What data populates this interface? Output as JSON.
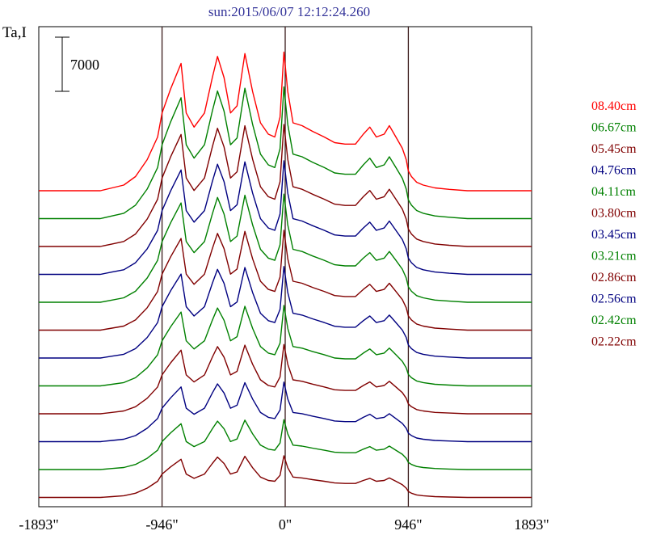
{
  "chart_data": {
    "type": "line",
    "title": "sun:2015/06/07 12:12:24.260",
    "ylabel": "Ta,I",
    "scale_bar_label": "7000",
    "x_ticks": [
      "-1893\"",
      "-946\"",
      "0\"",
      "946\"",
      "1893\""
    ],
    "x_tick_values": [
      -1893,
      -946,
      0,
      946,
      1893
    ],
    "xlim": [
      -1893,
      1893
    ],
    "vertical_markers": [
      -946,
      0,
      946
    ],
    "grid": false,
    "legend_position": "right",
    "series": [
      {
        "name": "08.40cm",
        "color": "#ff0000",
        "peak": 1.0
      },
      {
        "name": "06.67cm",
        "color": "#008000",
        "peak": 0.95
      },
      {
        "name": "05.45cm",
        "color": "#800000",
        "peak": 0.88
      },
      {
        "name": "04.76cm",
        "color": "#000080",
        "peak": 0.82
      },
      {
        "name": "04.11cm",
        "color": "#008000",
        "peak": 0.78
      },
      {
        "name": "03.80cm",
        "color": "#800000",
        "peak": 0.72
      },
      {
        "name": "03.45cm",
        "color": "#000080",
        "peak": 0.66
      },
      {
        "name": "03.21cm",
        "color": "#008000",
        "peak": 0.58
      },
      {
        "name": "02.86cm",
        "color": "#800000",
        "peak": 0.5
      },
      {
        "name": "02.56cm",
        "color": "#000080",
        "peak": 0.43
      },
      {
        "name": "02.42cm",
        "color": "#008000",
        "peak": 0.36
      },
      {
        "name": "02.22cm",
        "color": "#800000",
        "peak": 0.3
      }
    ],
    "profile_shape": {
      "x": [
        -1893,
        -1420,
        -1330,
        -1240,
        -1150,
        -1060,
        -980,
        -946,
        -880,
        -800,
        -760,
        -700,
        -620,
        -560,
        -520,
        -470,
        -420,
        -370,
        -310,
        -250,
        -190,
        -130,
        -80,
        -40,
        -10,
        20,
        60,
        130,
        210,
        300,
        380,
        460,
        540,
        600,
        650,
        700,
        760,
        800,
        850,
        900,
        930,
        946,
        970,
        1010,
        1060,
        1150,
        1260,
        1400,
        1893
      ],
      "y": [
        0,
        0,
        0.02,
        0.04,
        0.1,
        0.22,
        0.38,
        0.55,
        0.72,
        0.9,
        0.55,
        0.45,
        0.55,
        0.8,
        0.95,
        0.8,
        0.55,
        0.6,
        0.97,
        0.7,
        0.48,
        0.4,
        0.38,
        0.52,
        0.98,
        0.7,
        0.48,
        0.46,
        0.42,
        0.38,
        0.34,
        0.33,
        0.33,
        0.4,
        0.45,
        0.38,
        0.4,
        0.46,
        0.38,
        0.3,
        0.22,
        0.14,
        0.1,
        0.06,
        0.04,
        0.02,
        0.01,
        0,
        0
      ]
    }
  }
}
